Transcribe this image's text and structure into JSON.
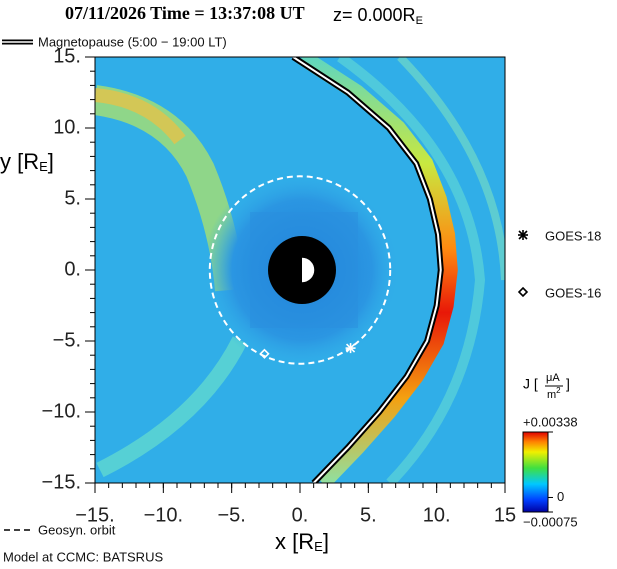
{
  "chart_data": {
    "type": "field",
    "title": "07/11/2026 Time = 13:37:08 UT",
    "subtitle": {
      "text": "z= 0.000R",
      "sub": "E"
    },
    "xlabel": {
      "text": "x [R",
      "sub": "E",
      "end": "]"
    },
    "ylabel": {
      "text": "y [R",
      "sub": "E",
      "end": "]"
    },
    "xlim": [
      -15,
      15
    ],
    "ylim": [
      -15,
      15
    ],
    "xticks": [
      {
        "value": -15,
        "label": "−15."
      },
      {
        "value": -10,
        "label": "−10."
      },
      {
        "value": -5,
        "label": "−5."
      },
      {
        "value": 0,
        "label": "0."
      },
      {
        "value": 5,
        "label": "5."
      },
      {
        "value": 10,
        "label": "10."
      },
      15
    ],
    "yticks": [
      {
        "value": 15,
        "label": "15."
      },
      {
        "value": 10,
        "label": "10."
      },
      {
        "value": 5,
        "label": "5."
      },
      {
        "value": 0,
        "label": "0."
      },
      {
        "value": -5,
        "label": "−5."
      },
      {
        "value": -10,
        "label": "−10."
      },
      {
        "value": -15,
        "label": "−15."
      }
    ],
    "magnetopause": {
      "name": "Magnetopause (5:00 − 19:00 LT)",
      "x": [
        -0.5,
        3.5,
        6.5,
        8.5,
        9.5,
        10.1,
        10.3,
        10.0,
        9.3,
        7.8,
        5.8,
        3.5,
        1.0
      ],
      "y": [
        15,
        12.5,
        10,
        7.5,
        5,
        2.5,
        0,
        -2.5,
        -5,
        -7.5,
        -10,
        -12.5,
        -15
      ]
    },
    "geosyn_orbit": {
      "name": "Geosyn. orbit",
      "radius": 6.6
    },
    "series": [
      {
        "name": "GOES-18",
        "marker": "asterisk",
        "x": [
          3.7
        ],
        "y": [
          -5.5
        ]
      },
      {
        "name": "GOES-16",
        "marker": "diamond",
        "x": [
          -2.6
        ],
        "y": [
          -5.9
        ]
      }
    ],
    "colorbar": {
      "label": "J [",
      "num": "μA",
      "den": "m",
      "sup": "2",
      "end": "]",
      "clim": [
        -0.00075,
        0.00338
      ],
      "ticks": [
        {
          "value": 0.00338,
          "label": "+0.00338"
        },
        {
          "value": 0,
          "label": "0"
        },
        {
          "value": -0.00075,
          "label": "−0.00075"
        }
      ]
    },
    "footer": "Model at CCMC: BATSRUS"
  }
}
